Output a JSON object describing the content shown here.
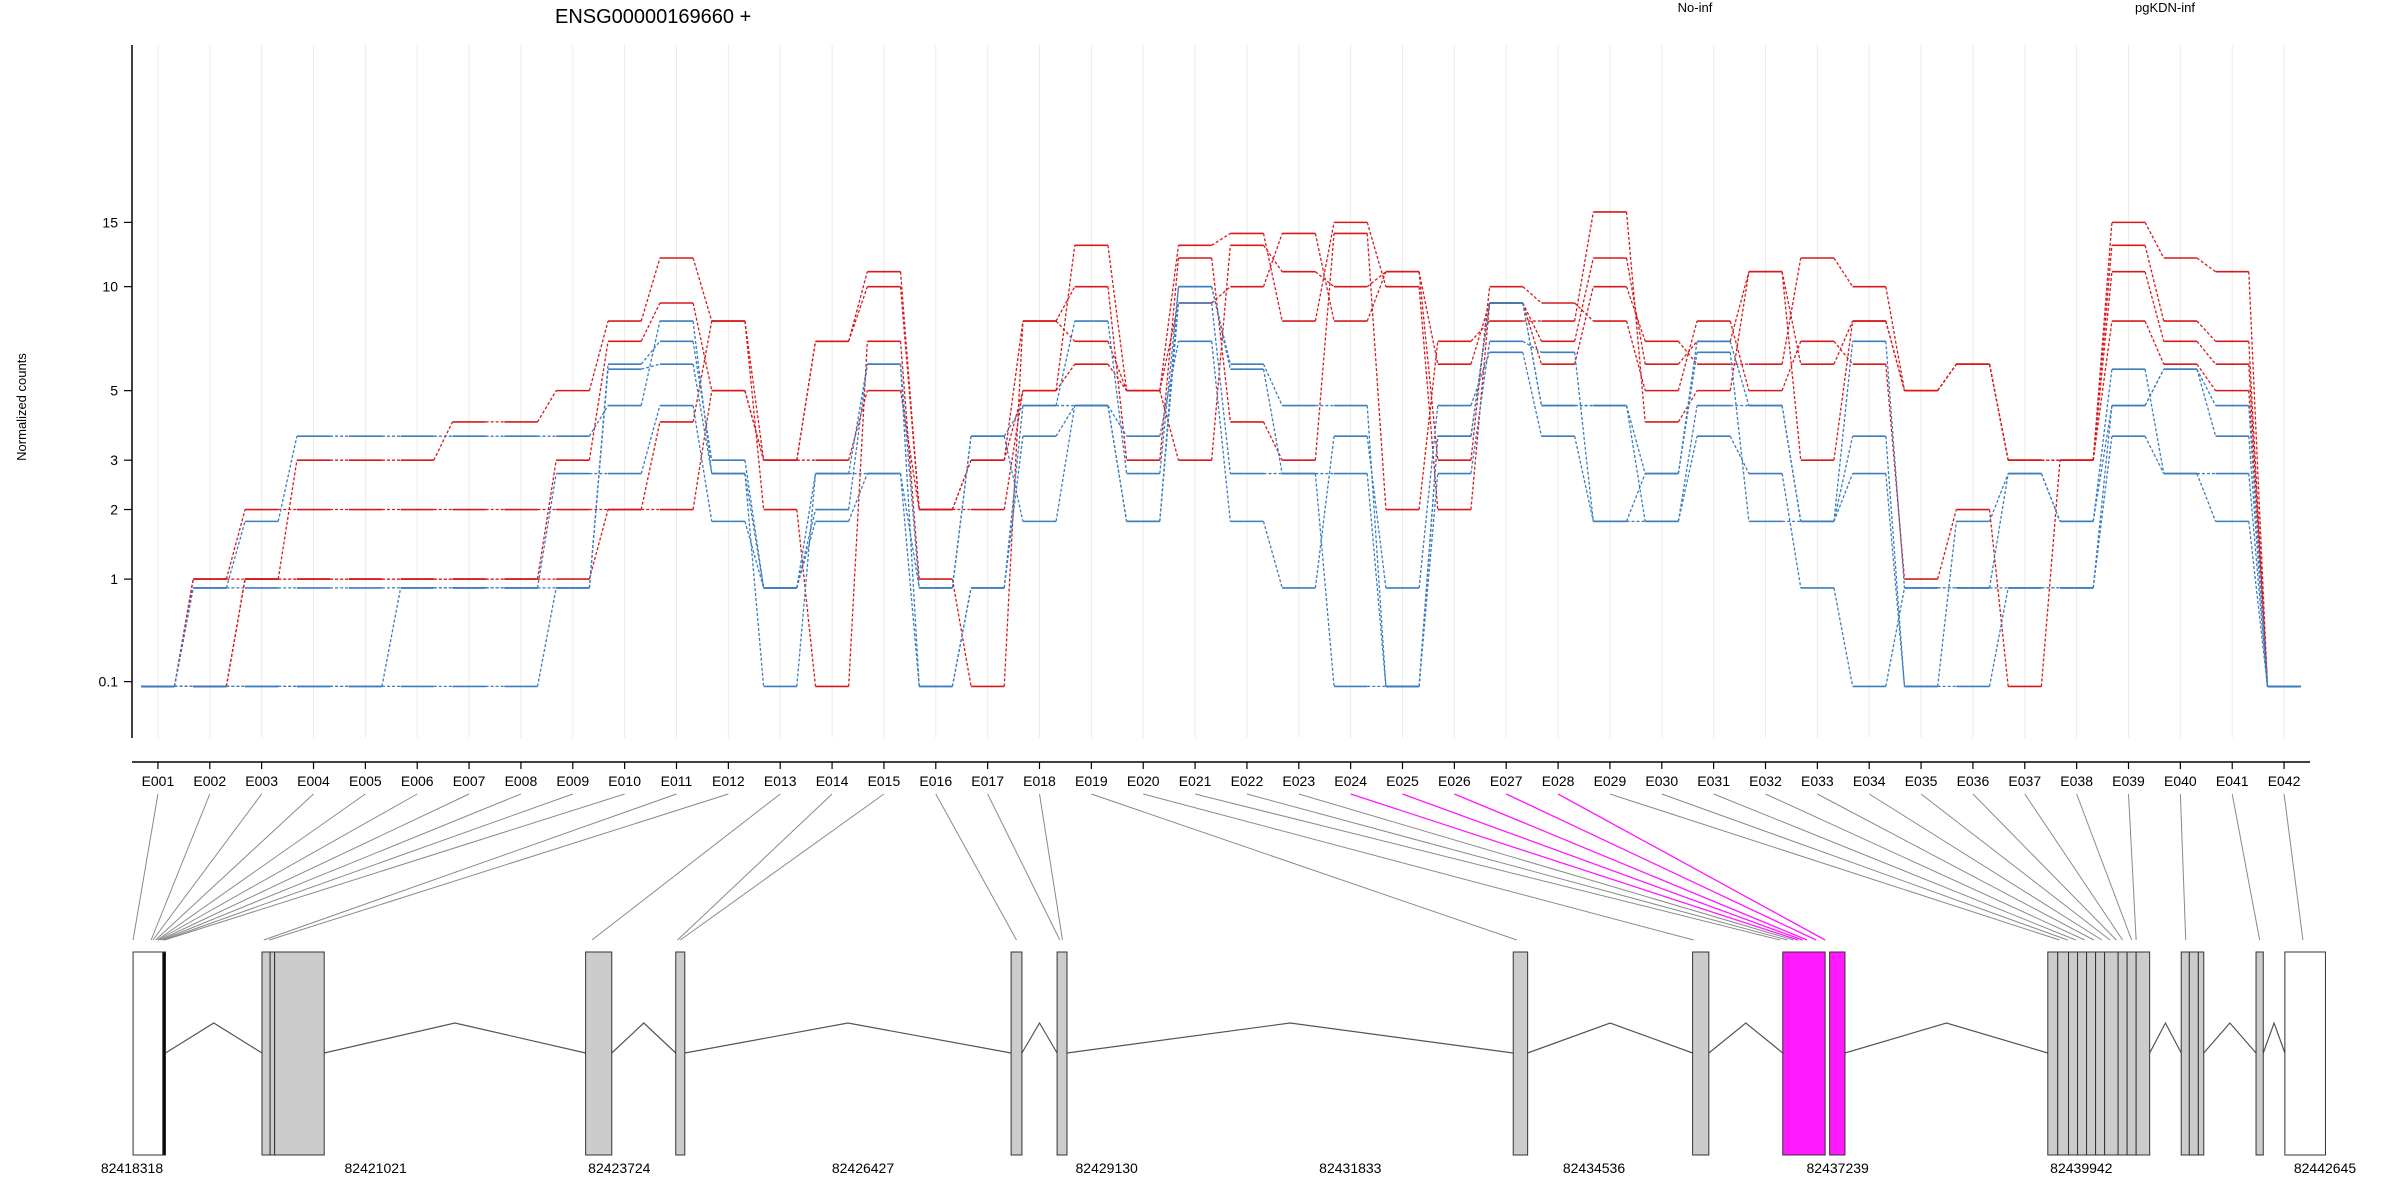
{
  "chart_data": {
    "type": "line",
    "title": "ENSG00000169660 +",
    "ylabel": "Normalized counts",
    "yscale": "log",
    "yticks": [
      0.1,
      1,
      2,
      3,
      5,
      10,
      15
    ],
    "colors": {
      "No-inf": "#d7191c",
      "pgKDN-inf": "#3a7dc0",
      "highlight": "#ff1aff"
    },
    "legend": [
      {
        "name": "No-inf",
        "color": "#d7191c"
      },
      {
        "name": "pgKDN-inf",
        "color": "#3a7dc0"
      }
    ],
    "categories": [
      "E001",
      "E002",
      "E003",
      "E004",
      "E005",
      "E006",
      "E007",
      "E008",
      "E009",
      "E010",
      "E011",
      "E012",
      "E013",
      "E014",
      "E015",
      "E016",
      "E017",
      "E018",
      "E019",
      "E020",
      "E021",
      "E022",
      "E023",
      "E024",
      "E025",
      "E026",
      "E027",
      "E028",
      "E029",
      "E030",
      "E031",
      "E032",
      "E033",
      "E034",
      "E035",
      "E036",
      "E037",
      "E038",
      "E039",
      "E040",
      "E041",
      "E042"
    ],
    "series": [
      {
        "group": "No-inf",
        "values": [
          0.07,
          1,
          1,
          1,
          1,
          1,
          1,
          1,
          1,
          2,
          2,
          5,
          3,
          3,
          5,
          2,
          2,
          5,
          6,
          5,
          3,
          13,
          11,
          10,
          11,
          6,
          9,
          6,
          10,
          7,
          6,
          6,
          12,
          10,
          5,
          6,
          3,
          3,
          8,
          6,
          5,
          0.07
        ]
      },
      {
        "group": "No-inf",
        "values": [
          0.07,
          1,
          2,
          2,
          2,
          2,
          2,
          2,
          2,
          2,
          4,
          8,
          2,
          0.07,
          7,
          1,
          0.07,
          8,
          7,
          5,
          9,
          10,
          14,
          8,
          11,
          3,
          10,
          9,
          8,
          5,
          8,
          5,
          7,
          6,
          1,
          2,
          0.07,
          3,
          13,
          8,
          7,
          0.07
        ]
      },
      {
        "group": "No-inf",
        "values": [
          0.07,
          0.07,
          1,
          3,
          3,
          3,
          4,
          4,
          5,
          8,
          12,
          8,
          3,
          7,
          11,
          2,
          3,
          5,
          13,
          5,
          13,
          14,
          8,
          15,
          10,
          2,
          9,
          7,
          12,
          6,
          7,
          11,
          6,
          8,
          5,
          6,
          3,
          3,
          15,
          12,
          11,
          0.07
        ]
      },
      {
        "group": "No-inf",
        "values": [
          0.07,
          0.07,
          1,
          1,
          1,
          1,
          1,
          1,
          3,
          7,
          9,
          5,
          3,
          7,
          10,
          2,
          3,
          8,
          10,
          3,
          12,
          4,
          3,
          14,
          2,
          7,
          8,
          8,
          16,
          4,
          5,
          11,
          3,
          8,
          5,
          6,
          3,
          3,
          11,
          7,
          6,
          0.07
        ]
      },
      {
        "group": "pgKDN-inf",
        "values": [
          0.07,
          0.9,
          0.9,
          0.9,
          0.9,
          0.9,
          0.9,
          0.9,
          0.9,
          6,
          7,
          3,
          0.9,
          2,
          6,
          0.07,
          0.9,
          4.5,
          4.5,
          1.8,
          10,
          6,
          4.5,
          4.5,
          0.07,
          3.6,
          9,
          4.5,
          4.5,
          2.7,
          6.5,
          1.8,
          1.8,
          7,
          0.9,
          0.9,
          2.7,
          1.8,
          4.5,
          5.8,
          4.5,
          0.07
        ]
      },
      {
        "group": "pgKDN-inf",
        "values": [
          0.07,
          0.9,
          1.8,
          3.6,
          3.6,
          3.6,
          3.6,
          3.6,
          3.6,
          4.5,
          8,
          2.7,
          0.07,
          2.7,
          6,
          0.9,
          3.6,
          4.5,
          8,
          2.7,
          10,
          5.8,
          2.7,
          2.7,
          0.07,
          2.7,
          7,
          6.5,
          1.8,
          2.7,
          7,
          4.5,
          1.8,
          3.6,
          0.07,
          1.8,
          2.7,
          1.8,
          5.8,
          2.7,
          1.8,
          0.07
        ]
      },
      {
        "group": "pgKDN-inf",
        "values": [
          0.07,
          0.07,
          0.07,
          0.07,
          0.07,
          0.9,
          0.9,
          0.9,
          2.7,
          2.7,
          4.5,
          1.8,
          0.9,
          1.8,
          2.7,
          0.9,
          3.6,
          1.8,
          4.5,
          3.6,
          7,
          1.8,
          0.9,
          3.6,
          0.9,
          4.5,
          6.5,
          3.6,
          1.8,
          1.8,
          3.6,
          2.7,
          0.9,
          0.07,
          0.9,
          0.9,
          0.9,
          0.9,
          3.6,
          2.7,
          2.7,
          0.07
        ]
      },
      {
        "group": "pgKDN-inf",
        "values": [
          0.07,
          0.07,
          0.07,
          0.07,
          0.07,
          0.07,
          0.07,
          0.07,
          0.9,
          5.8,
          6,
          2.7,
          0.9,
          2.7,
          2.7,
          0.07,
          0.9,
          3.6,
          4.5,
          1.8,
          9,
          2.7,
          2.7,
          0.07,
          0.07,
          3.6,
          9,
          4.5,
          4.5,
          1.8,
          4.5,
          4.5,
          1.8,
          2.7,
          0.07,
          0.07,
          0.9,
          0.9,
          4.5,
          5.8,
          3.6,
          0.07
        ]
      }
    ],
    "gene_model": {
      "tick_labels": [
        "82418318",
        "82421021",
        "82423724",
        "82426427",
        "82429130",
        "82431833",
        "82434536",
        "82437239",
        "82439942",
        "82442645"
      ],
      "axis_range": [
        82418318,
        82442645
      ],
      "exons": [
        {
          "start": 82418330,
          "end": 82418660,
          "fill": "#ffffff"
        },
        {
          "start": 82418660,
          "end": 82418690,
          "fill": "#000000"
        },
        {
          "start": 82419760,
          "end": 82419850,
          "fill": "#cccccc"
        },
        {
          "start": 82419850,
          "end": 82419900,
          "fill": "#cccccc"
        },
        {
          "start": 82419900,
          "end": 82420450,
          "fill": "#cccccc"
        },
        {
          "start": 82423350,
          "end": 82423640,
          "fill": "#cccccc"
        },
        {
          "start": 82424350,
          "end": 82424450,
          "fill": "#cccccc"
        },
        {
          "start": 82428070,
          "end": 82428190,
          "fill": "#cccccc"
        },
        {
          "start": 82428580,
          "end": 82428690,
          "fill": "#cccccc"
        },
        {
          "start": 82433640,
          "end": 82433800,
          "fill": "#cccccc"
        },
        {
          "start": 82435630,
          "end": 82435810,
          "fill": "#cccccc"
        },
        {
          "start": 82436630,
          "end": 82437100,
          "fill": "#ff1aff"
        },
        {
          "start": 82437150,
          "end": 82437320,
          "fill": "#ff1aff"
        },
        {
          "start": 82439570,
          "end": 82439680,
          "fill": "#cccccc"
        },
        {
          "start": 82439680,
          "end": 82439800,
          "fill": "#cccccc"
        },
        {
          "start": 82439800,
          "end": 82439900,
          "fill": "#cccccc"
        },
        {
          "start": 82439900,
          "end": 82440000,
          "fill": "#cccccc"
        },
        {
          "start": 82440000,
          "end": 82440100,
          "fill": "#cccccc"
        },
        {
          "start": 82440100,
          "end": 82440200,
          "fill": "#cccccc"
        },
        {
          "start": 82440200,
          "end": 82440350,
          "fill": "#cccccc"
        },
        {
          "start": 82440350,
          "end": 82440450,
          "fill": "#cccccc"
        },
        {
          "start": 82440450,
          "end": 82440550,
          "fill": "#cccccc"
        },
        {
          "start": 82440550,
          "end": 82440700,
          "fill": "#cccccc"
        },
        {
          "start": 82441050,
          "end": 82441140,
          "fill": "#cccccc"
        },
        {
          "start": 82441140,
          "end": 82441240,
          "fill": "#cccccc"
        },
        {
          "start": 82441240,
          "end": 82441300,
          "fill": "#cccccc"
        },
        {
          "start": 82441880,
          "end": 82441960,
          "fill": "#cccccc"
        },
        {
          "start": 82442200,
          "end": 82442650,
          "fill": "#ffffff"
        }
      ],
      "exon_bin_anchors": [
        82418330,
        82418530,
        82418550,
        82418580,
        82418600,
        82418610,
        82418630,
        82418650,
        82418670,
        82418680,
        82419780,
        82419840,
        82423420,
        82424370,
        82424400,
        82428130,
        82428610,
        82428640,
        82433680,
        82435640,
        82436600,
        82436680,
        82436750,
        82436800,
        82436850,
        82436900,
        82437000,
        82437100,
        82439700,
        82439790,
        82439880,
        82439980,
        82440080,
        82440170,
        82440260,
        82440330,
        82440400,
        82440500,
        82440550,
        82441100,
        82441920,
        82442400
      ],
      "highlighted_bins": [
        "E024",
        "E025",
        "E026",
        "E027",
        "E028"
      ]
    }
  }
}
